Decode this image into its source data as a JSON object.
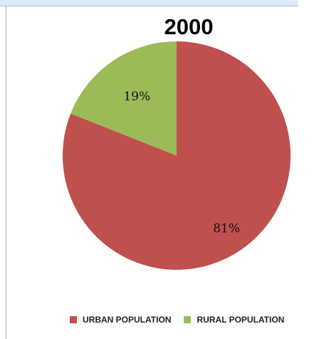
{
  "chart_data": {
    "type": "pie",
    "title": "2000",
    "categories": [
      "URBAN POPULATION",
      "RURAL POPULATION"
    ],
    "values": [
      81,
      19
    ],
    "data_labels": [
      "81%",
      "19%"
    ],
    "colors": [
      "#c0504d",
      "#9bbb59"
    ],
    "legend_position": "bottom",
    "start_angle_deg": 0,
    "direction": "clockwise"
  }
}
